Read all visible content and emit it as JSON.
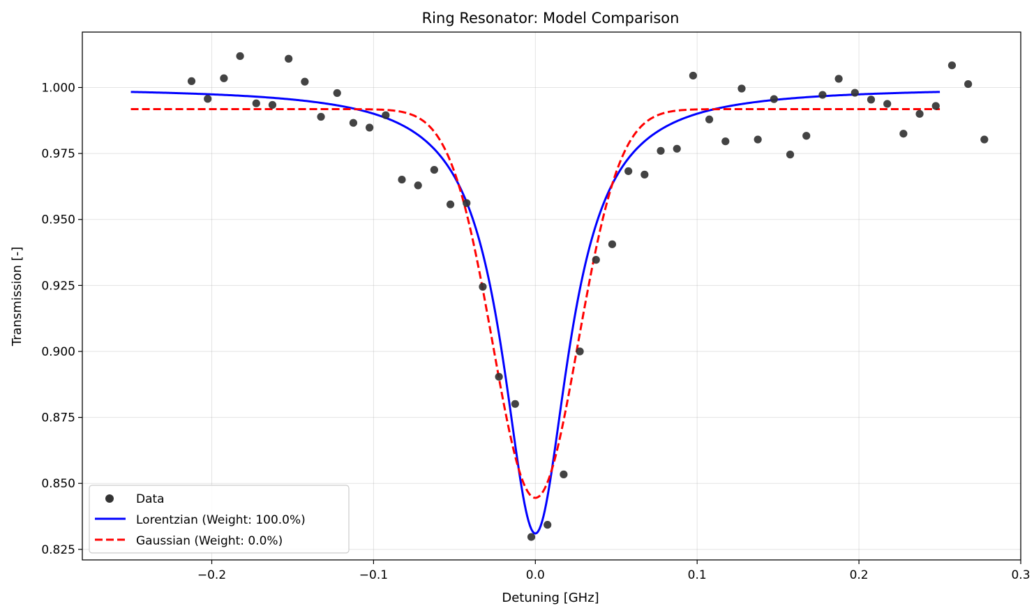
{
  "chart_data": {
    "type": "scatter",
    "title": "Ring Resonator: Model Comparison",
    "xlabel": "Detuning [GHz]",
    "ylabel": "Transmission [-]",
    "xlim": [
      -0.28,
      0.3
    ],
    "ylim": [
      0.821,
      1.021
    ],
    "xticks": [
      -0.2,
      -0.1,
      0.0,
      0.1,
      0.2,
      0.3
    ],
    "xtick_labels": [
      "−0.2",
      "−0.1",
      "0.0",
      "0.1",
      "0.2",
      "0.3"
    ],
    "yticks": [
      0.825,
      0.85,
      0.875,
      0.9,
      0.925,
      0.95,
      0.975,
      1.0
    ],
    "ytick_labels": [
      "0.825",
      "0.850",
      "0.875",
      "0.900",
      "0.925",
      "0.950",
      "0.975",
      "1.000"
    ],
    "grid": true,
    "legend_position": "lower-left",
    "series": [
      {
        "name": "Data",
        "kind": "scatter",
        "color": "#333333",
        "x": [
          -0.2125,
          -0.2025,
          -0.1925,
          -0.1825,
          -0.1725,
          -0.1625,
          -0.1525,
          -0.1425,
          -0.1325,
          -0.1225,
          -0.1125,
          -0.1025,
          -0.0925,
          -0.0825,
          -0.0725,
          -0.0625,
          -0.0525,
          -0.0425,
          -0.0325,
          -0.0225,
          -0.0125,
          -0.0025,
          0.0075,
          0.0175,
          0.0275,
          0.0375,
          0.0475,
          0.0575,
          0.0675,
          0.0775,
          0.0875,
          0.0975,
          0.1075,
          0.1175,
          0.1275,
          0.1375,
          0.1475,
          0.1575,
          0.1675,
          0.1775,
          0.1875,
          0.1975,
          0.2075,
          0.2175,
          0.2275,
          0.2375,
          0.2475,
          0.2575,
          0.2675,
          0.2775
        ],
        "y": [
          1.0024,
          0.9957,
          1.0035,
          1.0119,
          0.994,
          0.9934,
          1.0109,
          1.0022,
          0.9889,
          0.9979,
          0.9866,
          0.9848,
          0.9895,
          0.9651,
          0.9629,
          0.9688,
          0.9557,
          0.9562,
          0.9245,
          0.8904,
          0.8801,
          0.8297,
          0.8343,
          0.8534,
          0.9,
          0.9347,
          0.9406,
          0.9683,
          0.967,
          0.976,
          0.9768,
          1.0045,
          0.9879,
          0.9796,
          0.9996,
          0.9803,
          0.9956,
          0.9746,
          0.9817,
          0.9972,
          1.0033,
          0.998,
          0.9954,
          0.9938,
          0.9825,
          0.99,
          0.993,
          1.0084,
          1.0013,
          0.9803
        ]
      },
      {
        "name": "Lorentzian (Weight: 100.0%)",
        "kind": "line",
        "style": "solid",
        "color": "#0000ff",
        "model": "lorentzian",
        "x_range": [
          -0.25,
          0.25
        ],
        "params": {
          "baseline": 1.0,
          "depth": 0.169,
          "center": 0.0,
          "hwhm": 0.025
        }
      },
      {
        "name": "Gaussian (Weight: 0.0%)",
        "kind": "line",
        "style": "dashed",
        "color": "#ff0000",
        "model": "gaussian",
        "x_range": [
          -0.25,
          0.25
        ],
        "params": {
          "baseline": 0.9918,
          "depth": 0.1473,
          "center": 0.0,
          "sigma": 0.0262
        }
      }
    ]
  }
}
